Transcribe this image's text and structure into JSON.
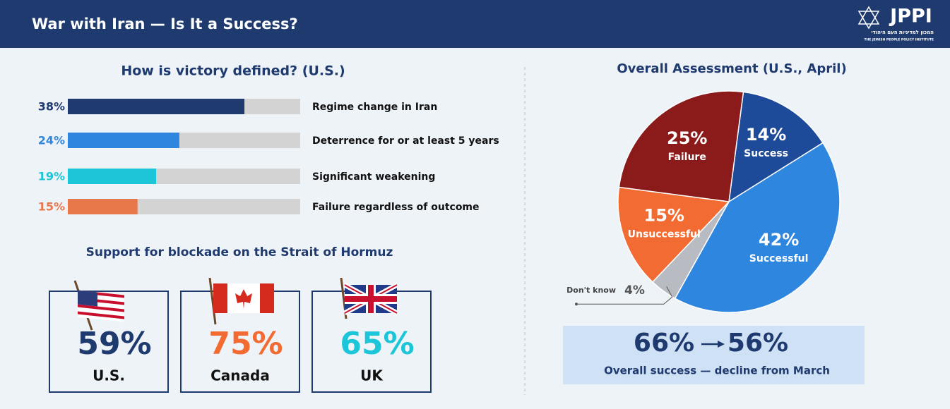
{
  "header": {
    "title": "War with Iran — Is It a Success?",
    "logo": "JPPI",
    "logo_hebrew": "המכון למדיניות העם היהודי",
    "logo_english": "THE JEWISH PEOPLE POLICY INSTITUTE"
  },
  "chart_data": [
    {
      "type": "bar",
      "orientation": "horizontal",
      "title": "How is victory defined? (U.S.)",
      "categories": [
        "Regime change in Iran",
        "Deterrence for or at least 5 years",
        "Significant weakening",
        "Failure regardless of outcome"
      ],
      "values": [
        38,
        24,
        19,
        15
      ],
      "value_labels": [
        "38%",
        "24%",
        "19%",
        "15%"
      ],
      "colors": [
        "#1f3a6e",
        "#2e86de",
        "#1cc6d8",
        "#e8774a"
      ],
      "track_color": "#d3d3d3",
      "xlim": [
        0,
        50
      ]
    },
    {
      "type": "pie",
      "title": "Overall Assessment (U.S., April)",
      "categories": [
        "Success",
        "Successful",
        "Don't know",
        "Unsuccessful",
        "Failure"
      ],
      "values": [
        14,
        42,
        4,
        15,
        25
      ],
      "value_labels": [
        "14%",
        "42%",
        "4%",
        "15%",
        "25%"
      ],
      "colors": [
        "#1e4a9a",
        "#2e86de",
        "#b8bcc2",
        "#f26b32",
        "#8b1a1a"
      ]
    }
  ],
  "blockade": {
    "title": "Support for blockade on the Strait of Hormuz",
    "items": [
      {
        "value": "59%",
        "label": "U.S.",
        "color": "#1f3a6e"
      },
      {
        "value": "75%",
        "label": "Canada",
        "color": "#f26b32"
      },
      {
        "value": "65%",
        "label": "UK",
        "color": "#1cc6d8"
      }
    ]
  },
  "summary": {
    "from": "66%",
    "to": "56%",
    "caption": "Overall success — decline from March"
  }
}
